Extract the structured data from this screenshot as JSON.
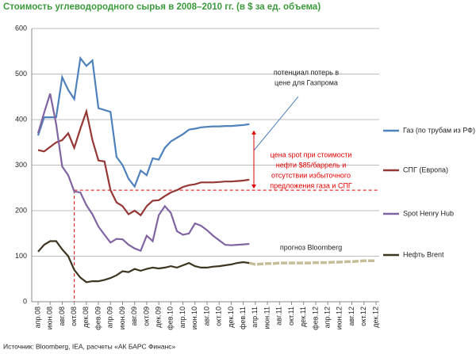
{
  "chart_data": {
    "type": "line",
    "title": "Стоимость углеводородного сырья в 2008–2010 гг. (в $ за ед. объема)",
    "source": "Источник: Bloomberg, IEA, расчеты «АК БАРС Финанс»",
    "categories": [
      "апр.08",
      null,
      "июн.08",
      null,
      "авг.08",
      null,
      "окт.08",
      null,
      "дек.08",
      null,
      "фев.09",
      null,
      "апр.09",
      null,
      "июн.09",
      null,
      "авг.09",
      null,
      "окт.09",
      null,
      "дек.09",
      null,
      "фев.10",
      null,
      "апр.10",
      null,
      "июн.10",
      null,
      "авг.10",
      null,
      "окт.10",
      null,
      "дек.10",
      null,
      "фев.11",
      null,
      "апр.11",
      null,
      "июн.11",
      null,
      "авг.11",
      null,
      "окт.11",
      null,
      "дек.11",
      null,
      "фев.12",
      null,
      "апр.12",
      null,
      "июн.12",
      null,
      "авг.12",
      null,
      "окт.12",
      null,
      "дек.12"
    ],
    "series": [
      {
        "name": "Газ (по трубам из РФ)",
        "color": "#4f81bd",
        "values": [
          365,
          405,
          405,
          405,
          493,
          465,
          445,
          535,
          518,
          530,
          425,
          421,
          417,
          318,
          300,
          270,
          253,
          288,
          278,
          315,
          312,
          338,
          352,
          360,
          368,
          378,
          380,
          383,
          384,
          385,
          385,
          386,
          386,
          387,
          388,
          390,
          null,
          null,
          null,
          null,
          null,
          null,
          null,
          null,
          null,
          null,
          null,
          null,
          null,
          null,
          null,
          null,
          null,
          null,
          null,
          null,
          null
        ]
      },
      {
        "name": "СПГ (Европа)",
        "color": "#953735",
        "values": [
          333,
          330,
          340,
          350,
          355,
          370,
          338,
          380,
          418,
          355,
          310,
          308,
          245,
          218,
          210,
          192,
          200,
          190,
          210,
          222,
          223,
          232,
          240,
          245,
          252,
          256,
          258,
          262,
          262,
          262,
          263,
          264,
          264,
          265,
          266,
          268,
          null,
          null,
          null,
          null,
          null,
          null,
          null,
          null,
          null,
          null,
          null,
          null,
          null,
          null,
          null,
          null,
          null,
          null,
          null,
          null,
          null
        ]
      },
      {
        "name": "Spot Henry Hub",
        "color": "#8064a2",
        "values": [
          370,
          415,
          457,
          390,
          297,
          278,
          242,
          240,
          212,
          192,
          165,
          147,
          130,
          138,
          137,
          125,
          117,
          112,
          145,
          133,
          190,
          210,
          195,
          155,
          147,
          150,
          172,
          167,
          157,
          145,
          135,
          125,
          124,
          125,
          126,
          127,
          null,
          null,
          null,
          null,
          null,
          null,
          null,
          null,
          null,
          null,
          null,
          null,
          null,
          null,
          null,
          null,
          null,
          null,
          null,
          null,
          null
        ]
      },
      {
        "name": "Нефть Brent",
        "color": "#3d3520",
        "values": [
          110,
          125,
          133,
          133,
          115,
          100,
          70,
          53,
          43,
          45,
          45,
          48,
          52,
          58,
          67,
          65,
          72,
          68,
          72,
          75,
          73,
          75,
          78,
          75,
          80,
          85,
          78,
          75,
          75,
          77,
          78,
          80,
          82,
          85,
          87,
          85,
          null,
          null,
          null,
          null,
          null,
          null,
          null,
          null,
          null,
          null,
          null,
          null,
          null,
          null,
          null,
          null,
          null,
          null,
          null,
          null,
          null
        ]
      },
      {
        "name": "прогноз Bloomberg",
        "color": "#c4bd97",
        "dashed": true,
        "values": [
          null,
          null,
          null,
          null,
          null,
          null,
          null,
          null,
          null,
          null,
          null,
          null,
          null,
          null,
          null,
          null,
          null,
          null,
          null,
          null,
          null,
          null,
          null,
          null,
          null,
          null,
          null,
          null,
          null,
          null,
          null,
          null,
          null,
          null,
          null,
          85,
          82,
          83,
          84,
          84,
          85,
          85,
          85,
          85,
          85,
          85,
          86,
          86,
          86,
          87,
          87,
          88,
          88,
          89,
          90,
          90,
          90
        ]
      }
    ],
    "ylim": [
      0,
      600
    ],
    "yticks": [
      0,
      100,
      200,
      300,
      400,
      500,
      600
    ],
    "grid": true,
    "reference_line": 245,
    "annotations": {
      "gas_loss": [
        "потенциал потерь в",
        "цене для Газпрома"
      ],
      "spot_price": [
        "цена spot при стоимости",
        "нефти $85/баррель и",
        "отсутствии избыточного",
        "предложения газа и СПГ"
      ]
    },
    "legend": "right"
  }
}
